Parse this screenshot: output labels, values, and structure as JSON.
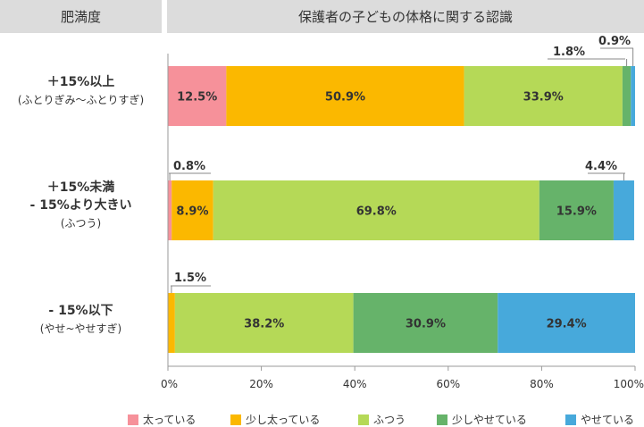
{
  "header": {
    "left": "肥満度",
    "right": "保護者の子どもの体格に関する認識"
  },
  "rows": [
    {
      "main": "＋15%以上",
      "sub": "(ふとりぎみ〜ふとりすぎ)"
    },
    {
      "main": "＋15%未満",
      "main2": "- 15%より大きい",
      "sub": "(ふつう)"
    },
    {
      "main": "- 15%以下",
      "sub": "(やせ~やせすぎ)"
    }
  ],
  "chart_data": {
    "type": "bar",
    "orientation": "horizontal-stacked-100",
    "categories": [
      "＋15%以上",
      "＋15%未満 - 15%より大きい",
      "- 15%以下"
    ],
    "series": [
      {
        "name": "太っている",
        "color": "#f6919a",
        "values": [
          12.5,
          0.8,
          0
        ]
      },
      {
        "name": "少し太っている",
        "color": "#fbb800",
        "values": [
          50.9,
          8.9,
          1.5
        ]
      },
      {
        "name": "ふつう",
        "color": "#b5d957",
        "values": [
          33.9,
          69.8,
          38.2
        ]
      },
      {
        "name": "少しやせている",
        "color": "#66b36a",
        "values": [
          1.8,
          15.9,
          30.9
        ]
      },
      {
        "name": "やせている",
        "color": "#47a9db",
        "values": [
          0.9,
          4.4,
          29.4
        ]
      }
    ],
    "labels": [
      [
        "12.5%",
        "50.9%",
        "33.9%",
        "1.8%",
        "0.9%"
      ],
      [
        "0.8%",
        "8.9%",
        "69.8%",
        "15.9%",
        "4.4%"
      ],
      [
        "",
        "1.5%",
        "38.2%",
        "30.9%",
        "29.4%"
      ]
    ],
    "xticks": [
      "0%",
      "20%",
      "40%",
      "60%",
      "80%",
      "100%"
    ],
    "xlim": [
      0,
      100
    ],
    "legend_position": "bottom"
  }
}
